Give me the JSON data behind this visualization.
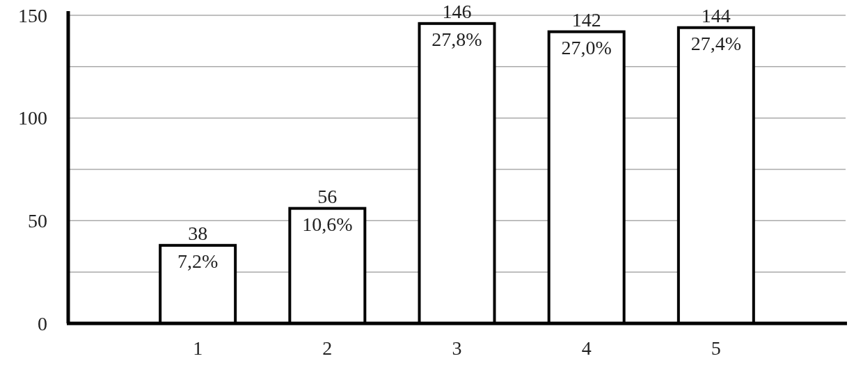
{
  "chart_data": {
    "type": "bar",
    "categories": [
      "1",
      "2",
      "3",
      "4",
      "5"
    ],
    "values": [
      38,
      56,
      146,
      142,
      144
    ],
    "color": "#ffffff",
    "ylim": [
      0,
      150
    ],
    "yticks": [
      0,
      {
        "value": 25,
        "label": null
      },
      50,
      {
        "value": 75,
        "label": null
      },
      100,
      {
        "value": 125,
        "label": null
      },
      150
    ],
    "grid": "y",
    "data_labels": true,
    "annotations": [
      {
        "text": "7,2%",
        "x": "1",
        "y": 38
      },
      {
        "text": "10,6%",
        "x": "2",
        "y": 56
      },
      {
        "text": "27,8%",
        "x": "3",
        "y": 146
      },
      {
        "text": "27,0%",
        "x": "4",
        "y": 142
      },
      {
        "text": "27,4%",
        "x": "5",
        "y": 144
      }
    ]
  }
}
